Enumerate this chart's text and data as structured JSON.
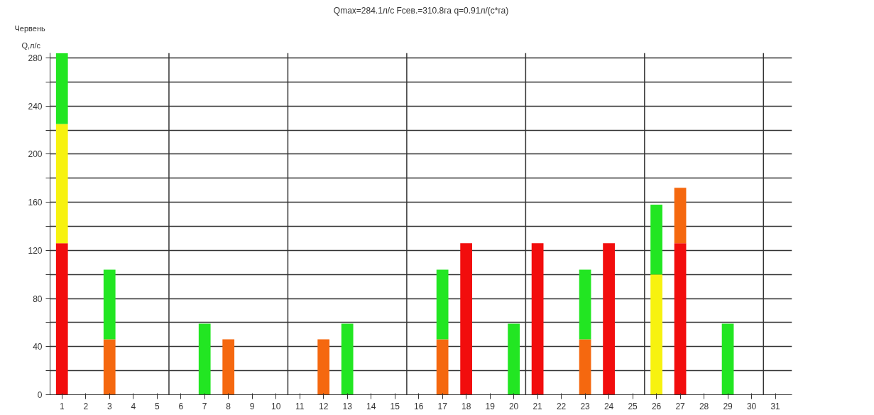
{
  "chart_data": {
    "type": "bar",
    "stacked": true,
    "title": "Qmax=284.1л/с Fсев.=310.8га q=0.91л/(с*га)",
    "ylabel": "Q,л/с",
    "annotations": [
      "Червень"
    ],
    "x": [
      1,
      2,
      3,
      4,
      5,
      6,
      7,
      8,
      9,
      10,
      11,
      12,
      13,
      14,
      15,
      16,
      17,
      18,
      19,
      20,
      21,
      22,
      23,
      24,
      25,
      26,
      27,
      28,
      29
    ],
    "xlim": [
      0.5,
      31.7
    ],
    "xticks": [
      1,
      2,
      3,
      4,
      5,
      6,
      7,
      8,
      9,
      10,
      11,
      12,
      13,
      14,
      15,
      16,
      17,
      18,
      19,
      20,
      21,
      22,
      23,
      24,
      25,
      26,
      27,
      28,
      29,
      30,
      31
    ],
    "ylim": [
      0,
      284.1
    ],
    "yticks": [
      0,
      {
        "value": 20,
        "label": null
      },
      40,
      {
        "value": 60,
        "label": null
      },
      80,
      {
        "value": 100,
        "label": null
      },
      120,
      {
        "value": 140,
        "label": null
      },
      160,
      {
        "value": 180,
        "label": null
      },
      200,
      {
        "value": 220,
        "label": null
      },
      240,
      {
        "value": 260,
        "label": null
      },
      280
    ],
    "grid": "y",
    "ref_lines": [
      {
        "axis": "x",
        "value": 5.5,
        "label": null,
        "color": "#333333"
      },
      {
        "axis": "x",
        "value": 10.5,
        "label": null,
        "color": "#333333"
      },
      {
        "axis": "x",
        "value": 15.5,
        "label": null,
        "color": "#333333"
      },
      {
        "axis": "x",
        "value": 20.5,
        "label": null,
        "color": "#333333"
      },
      {
        "axis": "x",
        "value": 25.5,
        "label": null,
        "color": "#333333"
      },
      {
        "axis": "x",
        "value": 30.5,
        "label": null,
        "color": "#333333"
      }
    ],
    "series": [
      {
        "color": "#f20d0d",
        "values": [
          126,
          null,
          null,
          null,
          null,
          null,
          null,
          null,
          null,
          null,
          null,
          null,
          null,
          null,
          null,
          null,
          null,
          126,
          null,
          null,
          126,
          null,
          null,
          126,
          null,
          null,
          126,
          null,
          null
        ]
      },
      {
        "color": "#f5680f",
        "values": [
          null,
          null,
          46,
          null,
          null,
          null,
          null,
          46,
          null,
          null,
          null,
          46,
          null,
          null,
          null,
          null,
          46,
          null,
          null,
          null,
          null,
          null,
          46,
          null,
          null,
          null,
          46,
          null,
          null
        ]
      },
      {
        "color": "#f7f20f",
        "values": [
          99,
          null,
          null,
          null,
          null,
          null,
          null,
          null,
          null,
          null,
          null,
          null,
          null,
          null,
          null,
          null,
          null,
          null,
          null,
          null,
          null,
          null,
          null,
          null,
          null,
          100,
          null,
          null,
          null
        ]
      },
      {
        "color": "#22e622",
        "values": [
          59,
          null,
          58,
          null,
          null,
          null,
          59,
          null,
          null,
          null,
          null,
          null,
          59,
          null,
          null,
          null,
          58,
          null,
          null,
          59,
          null,
          null,
          58,
          null,
          null,
          58,
          null,
          null,
          59
        ]
      }
    ]
  }
}
